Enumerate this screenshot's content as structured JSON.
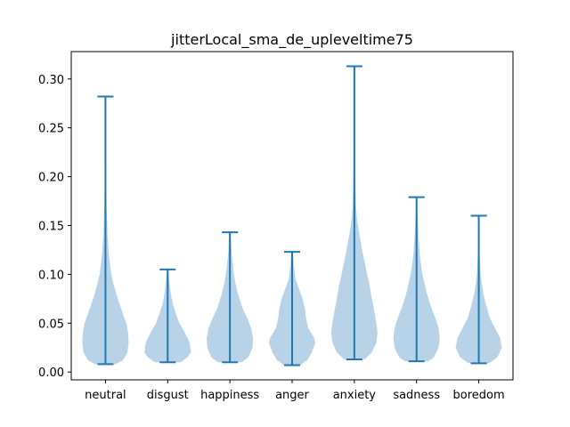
{
  "chart_data": {
    "type": "violin",
    "title": "jitterLocal_sma_de_upleveltime75",
    "xlabel": "",
    "ylabel": "",
    "ylim": [
      -0.008,
      0.328
    ],
    "yticks": [
      0.0,
      0.05,
      0.1,
      0.15,
      0.2,
      0.25,
      0.3
    ],
    "ytick_labels": [
      "0.00",
      "0.05",
      "0.10",
      "0.15",
      "0.20",
      "0.25",
      "0.30"
    ],
    "grid": false,
    "colors": {
      "body": "#b8d3e8",
      "line": "#1f77b4"
    },
    "categories": [
      "neutral",
      "disgust",
      "happiness",
      "anger",
      "anxiety",
      "sadness",
      "boredom"
    ],
    "series": [
      {
        "category": "neutral",
        "min": 0.008,
        "max": 0.282,
        "profile": [
          [
            0.008,
            0.45
          ],
          [
            0.012,
            0.75
          ],
          [
            0.02,
            0.95
          ],
          [
            0.03,
            1.0
          ],
          [
            0.04,
            0.98
          ],
          [
            0.05,
            0.9
          ],
          [
            0.06,
            0.75
          ],
          [
            0.07,
            0.6
          ],
          [
            0.08,
            0.47
          ],
          [
            0.09,
            0.35
          ],
          [
            0.1,
            0.25
          ],
          [
            0.12,
            0.15
          ],
          [
            0.14,
            0.09
          ],
          [
            0.17,
            0.05
          ],
          [
            0.2,
            0.03
          ],
          [
            0.25,
            0.015
          ],
          [
            0.282,
            0.01
          ]
        ]
      },
      {
        "category": "disgust",
        "min": 0.01,
        "max": 0.105,
        "profile": [
          [
            0.01,
            0.55
          ],
          [
            0.015,
            0.85
          ],
          [
            0.02,
            1.0
          ],
          [
            0.03,
            0.95
          ],
          [
            0.04,
            0.75
          ],
          [
            0.05,
            0.5
          ],
          [
            0.06,
            0.35
          ],
          [
            0.07,
            0.22
          ],
          [
            0.08,
            0.14
          ],
          [
            0.09,
            0.08
          ],
          [
            0.105,
            0.03
          ]
        ]
      },
      {
        "category": "happiness",
        "min": 0.01,
        "max": 0.143,
        "profile": [
          [
            0.01,
            0.5
          ],
          [
            0.015,
            0.8
          ],
          [
            0.025,
            0.98
          ],
          [
            0.035,
            1.0
          ],
          [
            0.045,
            0.92
          ],
          [
            0.055,
            0.75
          ],
          [
            0.065,
            0.55
          ],
          [
            0.08,
            0.35
          ],
          [
            0.09,
            0.25
          ],
          [
            0.1,
            0.17
          ],
          [
            0.12,
            0.08
          ],
          [
            0.143,
            0.03
          ]
        ]
      },
      {
        "category": "anger",
        "min": 0.007,
        "max": 0.123,
        "profile": [
          [
            0.007,
            0.35
          ],
          [
            0.012,
            0.65
          ],
          [
            0.02,
            0.85
          ],
          [
            0.03,
            1.0
          ],
          [
            0.035,
            0.95
          ],
          [
            0.045,
            0.7
          ],
          [
            0.055,
            0.6
          ],
          [
            0.065,
            0.55
          ],
          [
            0.075,
            0.45
          ],
          [
            0.085,
            0.3
          ],
          [
            0.095,
            0.15
          ],
          [
            0.11,
            0.07
          ],
          [
            0.123,
            0.03
          ]
        ]
      },
      {
        "category": "anxiety",
        "min": 0.013,
        "max": 0.313,
        "profile": [
          [
            0.013,
            0.45
          ],
          [
            0.02,
            0.75
          ],
          [
            0.03,
            0.95
          ],
          [
            0.04,
            1.0
          ],
          [
            0.05,
            0.95
          ],
          [
            0.06,
            0.88
          ],
          [
            0.07,
            0.8
          ],
          [
            0.08,
            0.72
          ],
          [
            0.09,
            0.65
          ],
          [
            0.1,
            0.55
          ],
          [
            0.12,
            0.38
          ],
          [
            0.14,
            0.22
          ],
          [
            0.155,
            0.12
          ],
          [
            0.17,
            0.07
          ],
          [
            0.2,
            0.04
          ],
          [
            0.25,
            0.02
          ],
          [
            0.313,
            0.01
          ]
        ]
      },
      {
        "category": "sadness",
        "min": 0.011,
        "max": 0.179,
        "profile": [
          [
            0.011,
            0.5
          ],
          [
            0.015,
            0.75
          ],
          [
            0.025,
            0.95
          ],
          [
            0.035,
            1.0
          ],
          [
            0.045,
            0.95
          ],
          [
            0.055,
            0.82
          ],
          [
            0.065,
            0.65
          ],
          [
            0.08,
            0.45
          ],
          [
            0.1,
            0.25
          ],
          [
            0.12,
            0.14
          ],
          [
            0.14,
            0.08
          ],
          [
            0.16,
            0.04
          ],
          [
            0.179,
            0.02
          ]
        ]
      },
      {
        "category": "boredom",
        "min": 0.009,
        "max": 0.16,
        "profile": [
          [
            0.009,
            0.45
          ],
          [
            0.015,
            0.8
          ],
          [
            0.025,
            1.0
          ],
          [
            0.035,
            0.92
          ],
          [
            0.045,
            0.7
          ],
          [
            0.055,
            0.48
          ],
          [
            0.07,
            0.3
          ],
          [
            0.08,
            0.2
          ],
          [
            0.09,
            0.13
          ],
          [
            0.1,
            0.08
          ],
          [
            0.12,
            0.04
          ],
          [
            0.14,
            0.02
          ],
          [
            0.16,
            0.01
          ]
        ]
      }
    ]
  }
}
